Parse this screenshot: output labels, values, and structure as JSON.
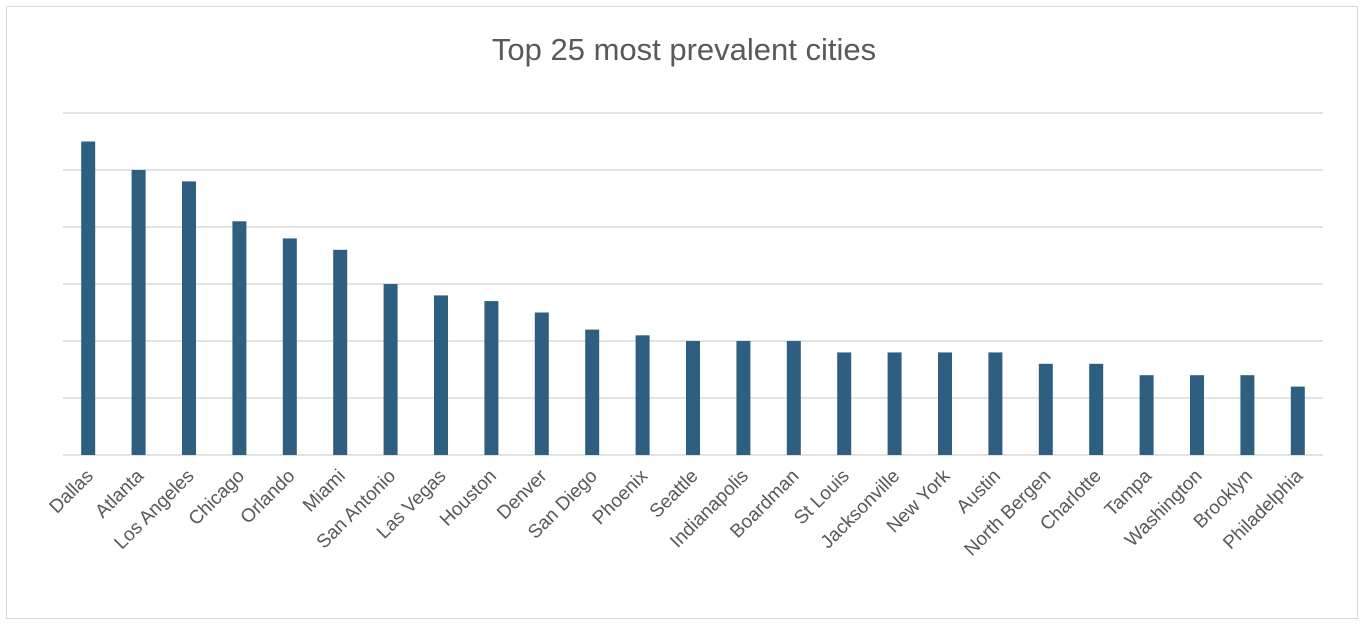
{
  "chart_data": {
    "type": "bar",
    "title": "Top 25 most prevalent cities",
    "xlabel": "",
    "ylabel": "",
    "ylim": [
      0,
      60
    ],
    "grid": true,
    "gridline_step": 10,
    "y_tick_labels_shown": false,
    "bar_color": "#2e5f80",
    "categories": [
      "Dallas",
      "Atlanta",
      "Los Angeles",
      "Chicago",
      "Orlando",
      "Miami",
      "San Antonio",
      "Las Vegas",
      "Houston",
      "Denver",
      "San Diego",
      "Phoenix",
      "Seattle",
      "Indianapolis",
      "Boardman",
      "St Louis",
      "Jacksonville",
      "New York",
      "Austin",
      "North Bergen",
      "Charlotte",
      "Tampa",
      "Washington",
      "Brooklyn",
      "Philadelphia"
    ],
    "values": [
      55,
      50,
      48,
      41,
      38,
      36,
      30,
      28,
      27,
      25,
      22,
      21,
      20,
      20,
      20,
      18,
      18,
      18,
      18,
      16,
      16,
      14,
      14,
      14,
      12
    ]
  }
}
